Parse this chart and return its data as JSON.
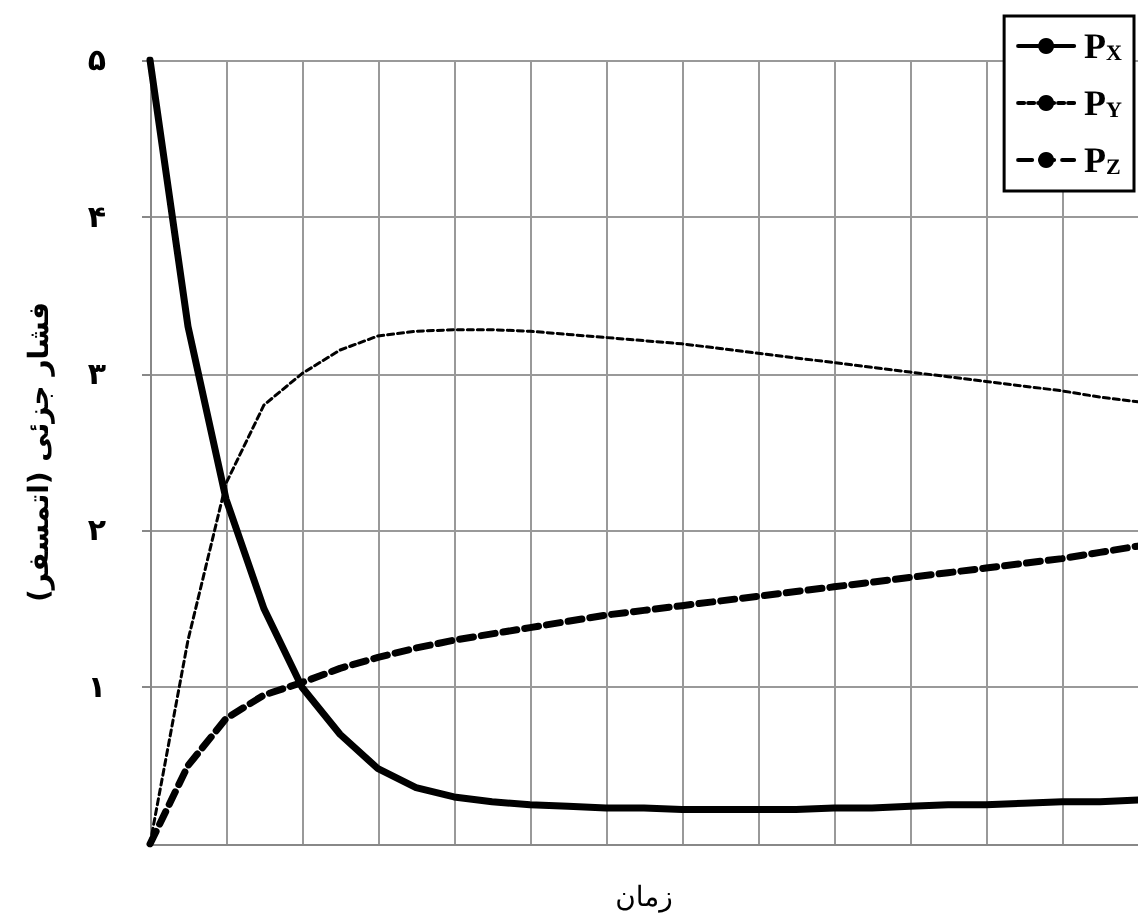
{
  "chart_data": {
    "type": "line",
    "xlabel": "زمان",
    "ylabel": "فشار جزئی (اتمسفر)",
    "categories": [
      null,
      null,
      null,
      null,
      null,
      null,
      null,
      null,
      null,
      null,
      null,
      null,
      null,
      null,
      null,
      null,
      null,
      null,
      null,
      null,
      null,
      null,
      null,
      null,
      null,
      null,
      null
    ],
    "series": [
      {
        "name": "P$_{X}$",
        "color": "#000000",
        "line_style": "solid",
        "values": [
          5,
          3.3,
          2.2,
          1.5,
          1.0,
          0.7,
          0.48,
          0.36,
          0.3,
          0.27,
          0.25,
          0.24,
          0.23,
          0.23,
          0.22,
          0.22,
          0.22,
          0.22,
          0.23,
          0.23,
          0.24,
          0.25,
          0.25,
          0.26,
          0.27,
          0.27,
          0.28
        ]
      },
      {
        "name": "P$_{Y}$",
        "color": "#000000",
        "line_style": "dotted",
        "values": [
          0,
          1.3,
          2.3,
          2.8,
          3.0,
          3.15,
          3.24,
          3.27,
          3.28,
          3.28,
          3.27,
          3.25,
          3.23,
          3.21,
          3.19,
          3.16,
          3.13,
          3.1,
          3.07,
          3.04,
          3.01,
          2.98,
          2.95,
          2.92,
          2.89,
          2.85,
          2.82
        ]
      },
      {
        "name": "P$_{Z}$",
        "color": "#000000",
        "line_style": "dashed",
        "values": [
          0,
          0.5,
          0.8,
          0.95,
          1.03,
          1.12,
          1.19,
          1.25,
          1.3,
          1.34,
          1.38,
          1.42,
          1.46,
          1.49,
          1.52,
          1.55,
          1.58,
          1.61,
          1.64,
          1.67,
          1.7,
          1.73,
          1.76,
          1.79,
          1.82,
          1.86,
          1.9
        ]
      }
    ],
    "ylim": [
      0,
      5
    ],
    "yticks": [
      {
        "value": 1,
        "label": "۱"
      },
      {
        "value": 2,
        "label": "۲"
      },
      {
        "value": 3,
        "label": "۳"
      },
      {
        "value": 4,
        "label": "۴"
      },
      {
        "value": 5,
        "label": "۵"
      }
    ],
    "tick_labels": "y",
    "grid": true,
    "legend": "top right",
    "marker": "none"
  }
}
